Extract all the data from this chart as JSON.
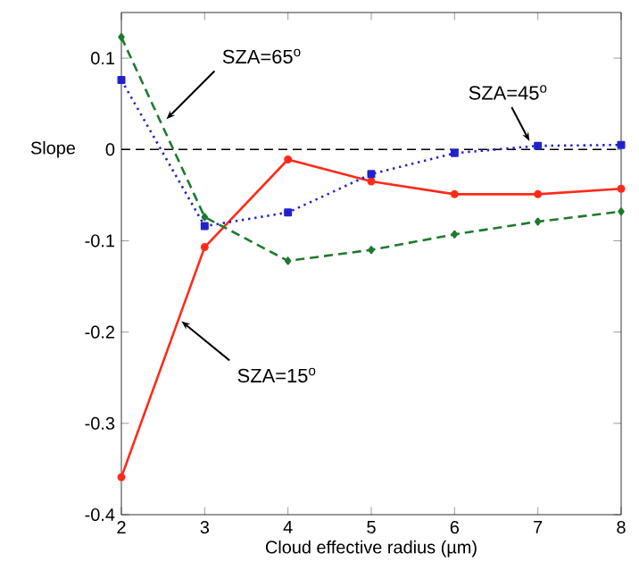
{
  "chart_data": {
    "type": "line",
    "xlabel": "Cloud effective radius (µm)",
    "ylabel": "Slope",
    "x": [
      2,
      3,
      4,
      5,
      6,
      7,
      8
    ],
    "series": [
      {
        "color": "#ff2a1a",
        "marker": "circle",
        "line_style": "solid",
        "values": [
          -0.359,
          -0.107,
          -0.011,
          -0.035,
          -0.049,
          -0.049,
          -0.043
        ]
      },
      {
        "color": "#2222cc",
        "marker": "square",
        "line_style": "dotted",
        "values": [
          0.076,
          -0.084,
          -0.069,
          -0.027,
          -0.004,
          0.004,
          0.005
        ]
      },
      {
        "color": "#1e7a2e",
        "marker": "diamond",
        "line_style": "dashed",
        "values": [
          0.123,
          -0.074,
          -0.122,
          -0.11,
          -0.093,
          -0.079,
          -0.068
        ]
      }
    ],
    "xlim": [
      2,
      8
    ],
    "xticks": [
      2,
      3,
      4,
      5,
      6,
      7,
      8
    ],
    "ylim": [
      -0.4,
      0.15
    ],
    "yticks": [
      -0.4,
      -0.3,
      -0.2,
      -0.1,
      0,
      0.1
    ],
    "ref_lines": [
      {
        "axis": "y",
        "value": 0,
        "color": "#000000",
        "line_style": "dashed"
      }
    ],
    "annotations": [
      {
        "text": "SZA=65$^{o}$",
        "x": 2.54,
        "y": 0.033
      },
      {
        "text": "SZA=45$^{o}$",
        "x": 6.9,
        "y": 0.009
      },
      {
        "text": "SZA=15$^{o}$",
        "x": 2.72,
        "y": -0.188
      }
    ],
    "grid": false
  }
}
